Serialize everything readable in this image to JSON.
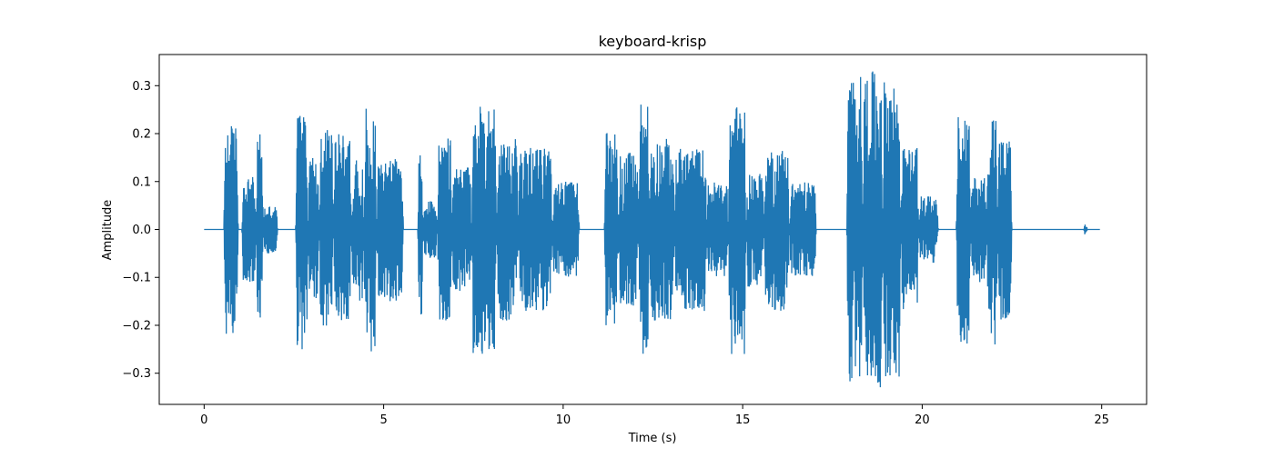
{
  "chart_data": {
    "type": "line",
    "title": "keyboard-krisp",
    "xlabel": "Time (s)",
    "ylabel": "Amplitude",
    "xlim": [
      -1.25,
      26.25
    ],
    "ylim": [
      -0.365,
      0.365
    ],
    "xticks": [
      0,
      5,
      10,
      15,
      20,
      25
    ],
    "xtick_labels": [
      "0",
      "5",
      "10",
      "15",
      "20",
      "25"
    ],
    "yticks": [
      -0.3,
      -0.2,
      -0.1,
      0.0,
      0.1,
      0.2,
      0.3
    ],
    "ytick_labels": [
      "−0.3",
      "−0.2",
      "−0.1",
      "0.0",
      "0.1",
      "0.2",
      "0.3"
    ],
    "grid": false,
    "color": "#1f77b4",
    "duration_s": 24.95,
    "series": [
      {
        "envelope": [
          {
            "start": 0.55,
            "end": 0.95,
            "amp": 0.22
          },
          {
            "start": 1.05,
            "end": 1.45,
            "amp": 0.11
          },
          {
            "start": 1.45,
            "end": 1.65,
            "amp": 0.21
          },
          {
            "start": 1.65,
            "end": 2.05,
            "amp": 0.05
          },
          {
            "start": 2.55,
            "end": 2.9,
            "amp": 0.25
          },
          {
            "start": 2.9,
            "end": 3.2,
            "amp": 0.17
          },
          {
            "start": 3.2,
            "end": 3.6,
            "amp": 0.21
          },
          {
            "start": 3.6,
            "end": 4.1,
            "amp": 0.2
          },
          {
            "start": 4.1,
            "end": 4.45,
            "amp": 0.15
          },
          {
            "start": 4.45,
            "end": 4.8,
            "amp": 0.26
          },
          {
            "start": 4.8,
            "end": 5.55,
            "amp": 0.15
          },
          {
            "start": 5.95,
            "end": 6.1,
            "amp": 0.2
          },
          {
            "start": 6.1,
            "end": 6.5,
            "amp": 0.06
          },
          {
            "start": 6.5,
            "end": 6.9,
            "amp": 0.19
          },
          {
            "start": 6.9,
            "end": 7.45,
            "amp": 0.13
          },
          {
            "start": 7.45,
            "end": 8.15,
            "amp": 0.26
          },
          {
            "start": 8.15,
            "end": 8.75,
            "amp": 0.19
          },
          {
            "start": 8.75,
            "end": 9.7,
            "amp": 0.17
          },
          {
            "start": 9.7,
            "end": 10.45,
            "amp": 0.1
          },
          {
            "start": 11.15,
            "end": 11.55,
            "amp": 0.21
          },
          {
            "start": 11.55,
            "end": 12.1,
            "amp": 0.16
          },
          {
            "start": 12.1,
            "end": 12.4,
            "amp": 0.27
          },
          {
            "start": 12.4,
            "end": 13.1,
            "amp": 0.19
          },
          {
            "start": 13.1,
            "end": 14.0,
            "amp": 0.17
          },
          {
            "start": 14.0,
            "end": 14.6,
            "amp": 0.1
          },
          {
            "start": 14.6,
            "end": 15.1,
            "amp": 0.26
          },
          {
            "start": 15.1,
            "end": 15.6,
            "amp": 0.12
          },
          {
            "start": 15.6,
            "end": 16.3,
            "amp": 0.17
          },
          {
            "start": 16.3,
            "end": 17.05,
            "amp": 0.1
          },
          {
            "start": 17.9,
            "end": 18.35,
            "amp": 0.32
          },
          {
            "start": 18.35,
            "end": 18.9,
            "amp": 0.33
          },
          {
            "start": 18.9,
            "end": 19.4,
            "amp": 0.31
          },
          {
            "start": 19.4,
            "end": 19.9,
            "amp": 0.17
          },
          {
            "start": 19.9,
            "end": 20.45,
            "amp": 0.07
          },
          {
            "start": 20.95,
            "end": 21.35,
            "amp": 0.24
          },
          {
            "start": 21.35,
            "end": 21.8,
            "amp": 0.11
          },
          {
            "start": 21.8,
            "end": 22.1,
            "amp": 0.25
          },
          {
            "start": 22.1,
            "end": 22.5,
            "amp": 0.19
          },
          {
            "start": 24.5,
            "end": 24.6,
            "amp": 0.015
          }
        ]
      }
    ]
  }
}
